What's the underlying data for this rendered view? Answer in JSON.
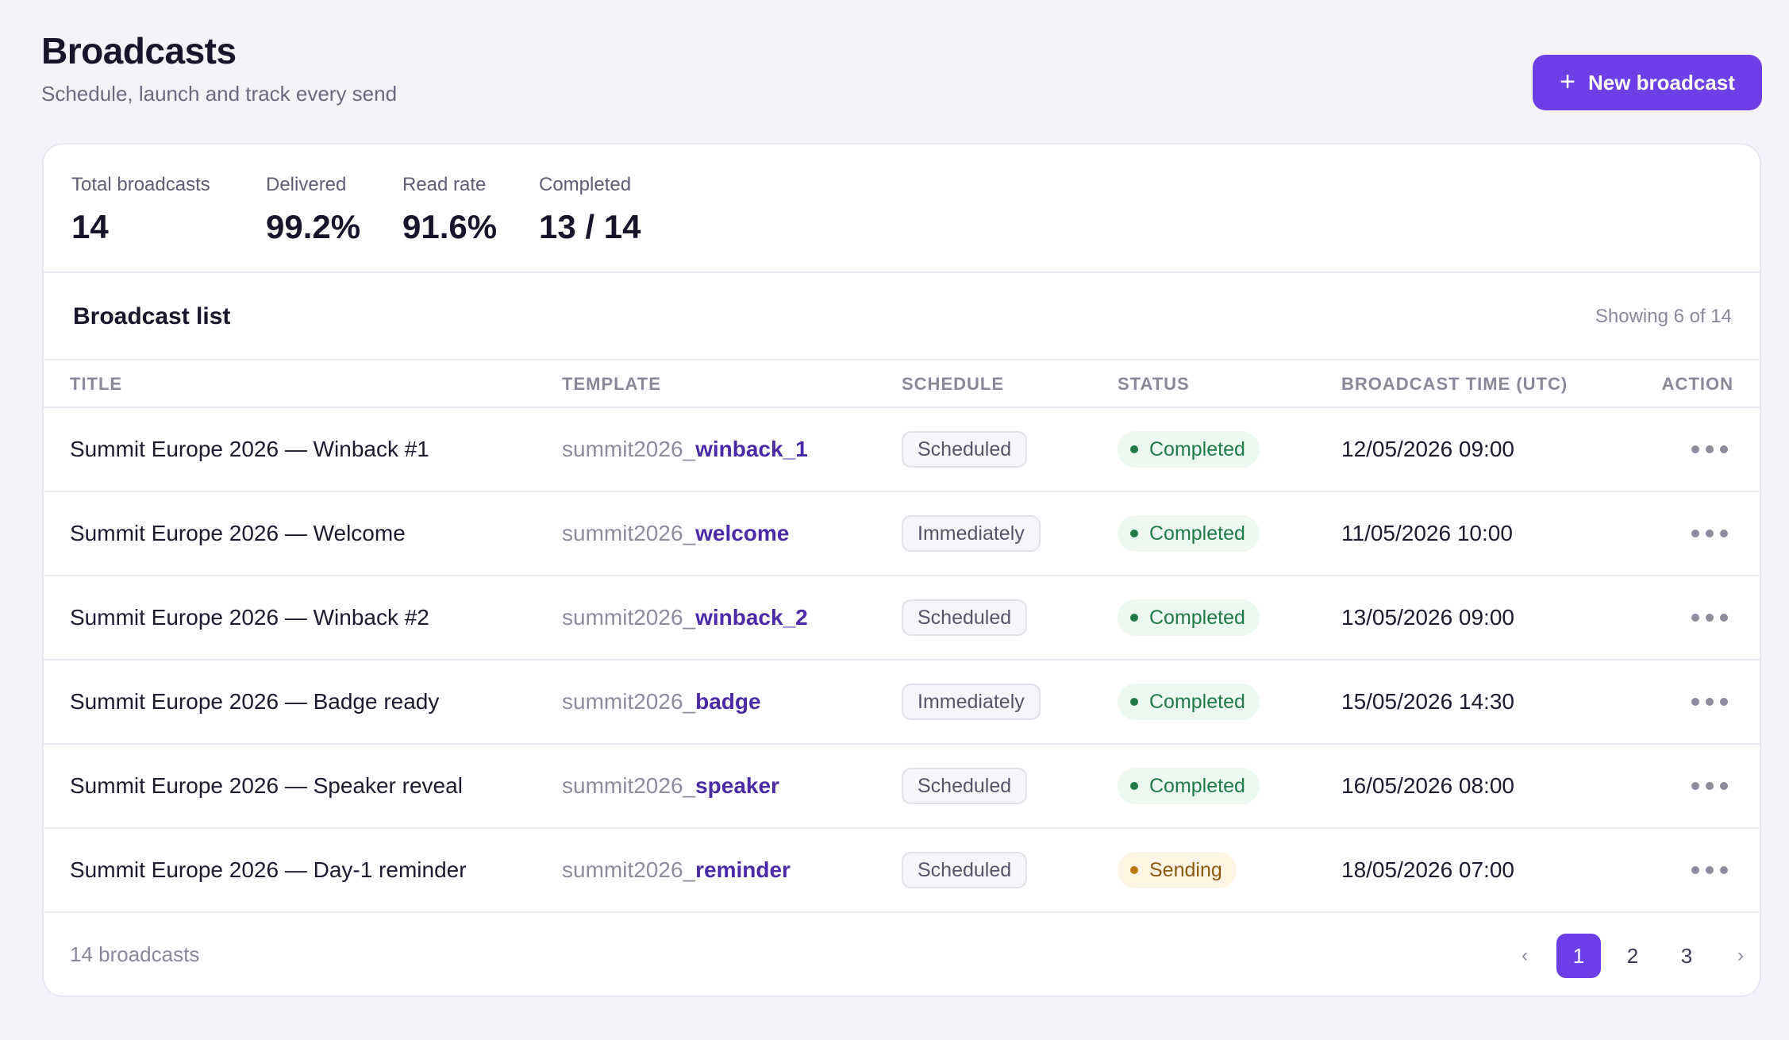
{
  "header": {
    "title": "Broadcasts",
    "subtitle": "Schedule, launch and track every send",
    "new_button_icon": "plus-icon",
    "new_button_label": "New broadcast"
  },
  "stats": [
    {
      "label": "Total broadcasts",
      "value": "14"
    },
    {
      "label": "Delivered",
      "value": "99.2%"
    },
    {
      "label": "Read rate",
      "value": "91.6%"
    },
    {
      "label": "Completed",
      "value": "13 / 14"
    }
  ],
  "list": {
    "title": "Broadcast list",
    "showing": "Showing 6 of 14",
    "columns": [
      "TITLE",
      "TEMPLATE",
      "SCHEDULE",
      "STATUS",
      "BROADCAST TIME (UTC)",
      "ACTION"
    ],
    "rows": [
      {
        "title": "Summit Europe 2026 — Winback #1",
        "template_prefix": "summit2026_",
        "template_suffix": "winback_1",
        "schedule": "Scheduled",
        "status": "Completed",
        "time": "12/05/2026 09:00"
      },
      {
        "title": "Summit Europe 2026 — Welcome",
        "template_prefix": "summit2026_",
        "template_suffix": "welcome",
        "schedule": "Immediately",
        "status": "Completed",
        "time": "11/05/2026 10:00"
      },
      {
        "title": "Summit Europe 2026 — Winback #2",
        "template_prefix": "summit2026_",
        "template_suffix": "winback_2",
        "schedule": "Scheduled",
        "status": "Completed",
        "time": "13/05/2026 09:00"
      },
      {
        "title": "Summit Europe 2026 — Badge ready",
        "template_prefix": "summit2026_",
        "template_suffix": "badge",
        "schedule": "Immediately",
        "status": "Completed",
        "time": "15/05/2026 14:30"
      },
      {
        "title": "Summit Europe 2026 — Speaker reveal",
        "template_prefix": "summit2026_",
        "template_suffix": "speaker",
        "schedule": "Scheduled",
        "status": "Completed",
        "time": "16/05/2026 08:00"
      },
      {
        "title": "Summit Europe 2026 — Day-1 reminder",
        "template_prefix": "summit2026_",
        "template_suffix": "reminder",
        "schedule": "Scheduled",
        "status": "Sending",
        "time": "18/05/2026 07:00"
      }
    ]
  },
  "footer": {
    "count": "14 broadcasts",
    "pagination": {
      "prev": "‹",
      "pages": [
        "1",
        "2",
        "3"
      ],
      "current": "1",
      "next": "›"
    }
  },
  "colors": {
    "accent": "#6d3fe6",
    "completed": "#1f7a45",
    "sending": "#b9770e"
  }
}
